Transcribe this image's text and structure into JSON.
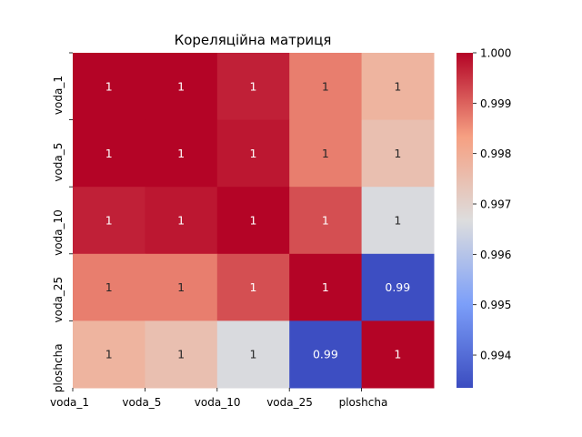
{
  "chart_data": {
    "type": "heatmap",
    "title": "Кореляційна матриця",
    "x_labels": [
      "voda_1",
      "voda_5",
      "voda_10",
      "voda_25",
      "ploshcha"
    ],
    "y_labels": [
      "voda_1",
      "voda_5",
      "voda_10",
      "voda_25",
      "ploshcha"
    ],
    "matrix": [
      [
        1.0,
        1.0,
        0.9997,
        0.9987,
        0.9978
      ],
      [
        1.0,
        1.0,
        0.9998,
        0.9987,
        0.9975
      ],
      [
        0.9997,
        0.9998,
        1.0,
        0.9992,
        0.9966
      ],
      [
        0.9987,
        0.9987,
        0.9992,
        1.0,
        0.9934
      ],
      [
        0.9978,
        0.9975,
        0.9966,
        0.9934,
        1.0
      ]
    ],
    "annotations": [
      [
        "1",
        "1",
        "1",
        "1",
        "1"
      ],
      [
        "1",
        "1",
        "1",
        "1",
        "1"
      ],
      [
        "1",
        "1",
        "1",
        "1",
        "1"
      ],
      [
        "1",
        "1",
        "1",
        "1",
        "0.99"
      ],
      [
        "1",
        "1",
        "1",
        "0.99",
        "1"
      ]
    ],
    "colormap": "coolwarm",
    "colorbar": {
      "range": [
        0.99335,
        1.0
      ],
      "ticks": [
        0.994,
        0.995,
        0.996,
        0.997,
        0.998,
        0.999,
        1.0
      ],
      "tick_labels": [
        "0.994",
        "0.995",
        "0.996",
        "0.997",
        "0.998",
        "0.999",
        "1.000"
      ]
    },
    "grid": false,
    "legend": "colorbar-right"
  }
}
